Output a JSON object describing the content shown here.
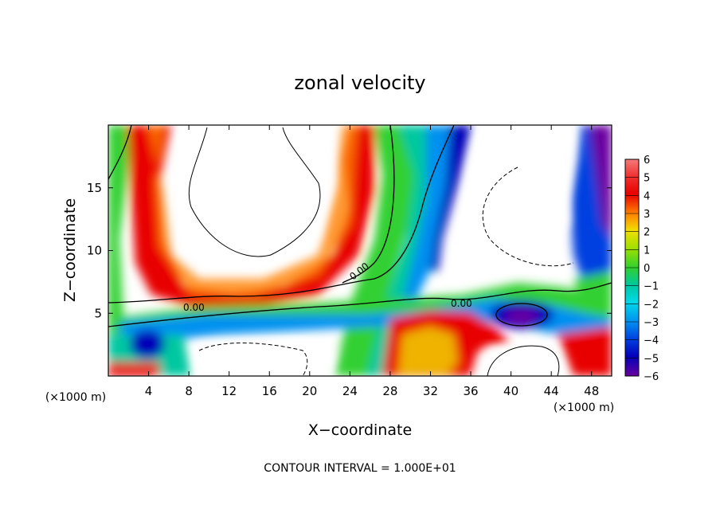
{
  "chart_data": {
    "type": "heatmap",
    "title": "zonal velocity",
    "xlabel": "X−coordinate",
    "ylabel": "Z−coordinate",
    "x_unit": "(×1000 m)",
    "y_unit": "(×1000 m)",
    "xlim": [
      0,
      50
    ],
    "ylim": [
      0,
      20
    ],
    "x_ticks": [
      "4",
      "8",
      "12",
      "16",
      "20",
      "24",
      "28",
      "32",
      "36",
      "40",
      "44",
      "48"
    ],
    "y_ticks": [
      "5",
      "10",
      "15"
    ],
    "x_tick_values": [
      4,
      8,
      12,
      16,
      20,
      24,
      28,
      32,
      36,
      40,
      44,
      48
    ],
    "y_tick_values": [
      5,
      10,
      15
    ],
    "colorbar": {
      "labels": [
        "6",
        "5",
        "4",
        "3",
        "2",
        "1",
        "0",
        "−1",
        "−2",
        "−3",
        "−4",
        "−5",
        "−6"
      ],
      "values": [
        6,
        5,
        4,
        3,
        2,
        1,
        0,
        -1,
        -2,
        -3,
        -4,
        -5,
        -6
      ],
      "colors": [
        "#f47a7a",
        "#f03030",
        "#e80000",
        "#ff8000",
        "#f0e000",
        "#a0e000",
        "#30d030",
        "#00c8a0",
        "#00d8e8",
        "#0090f0",
        "#0040e0",
        "#0000b8",
        "#6a00a0"
      ]
    },
    "contour_labels": [
      "0.00",
      "0.00",
      "0.00"
    ],
    "footer": "CONTOUR INTERVAL = 1.000E+01",
    "grid": false
  }
}
